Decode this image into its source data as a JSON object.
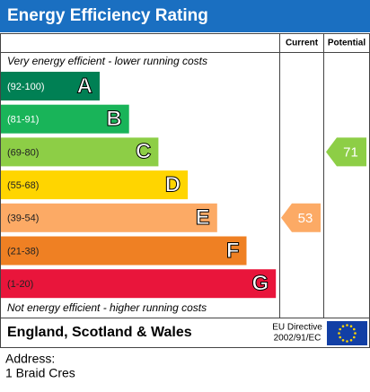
{
  "header": {
    "title": "Energy Efficiency Rating"
  },
  "columns": {
    "current": "Current",
    "potential": "Potential"
  },
  "top_note": "Very energy efficient - lower running costs",
  "bottom_note": "Not energy efficient - higher running costs",
  "bands": [
    {
      "range": "(92-100)",
      "letter": "A",
      "color": "#008054"
    },
    {
      "range": "(81-91)",
      "letter": "B",
      "color": "#19b459"
    },
    {
      "range": "(69-80)",
      "letter": "C",
      "color": "#8dce46"
    },
    {
      "range": "(55-68)",
      "letter": "D",
      "color": "#ffd500"
    },
    {
      "range": "(39-54)",
      "letter": "E",
      "color": "#fcaa65"
    },
    {
      "range": "(21-38)",
      "letter": "F",
      "color": "#ef8023"
    },
    {
      "range": "(1-20)",
      "letter": "G",
      "color": "#e9153b"
    }
  ],
  "ratings": {
    "current": 53,
    "potential": 71
  },
  "footer": {
    "region": "England, Scotland & Wales",
    "directive_line1": "EU Directive",
    "directive_line2": "2002/91/EC"
  },
  "address": {
    "label": "Address:",
    "line1": "1 Braid Cres"
  }
}
